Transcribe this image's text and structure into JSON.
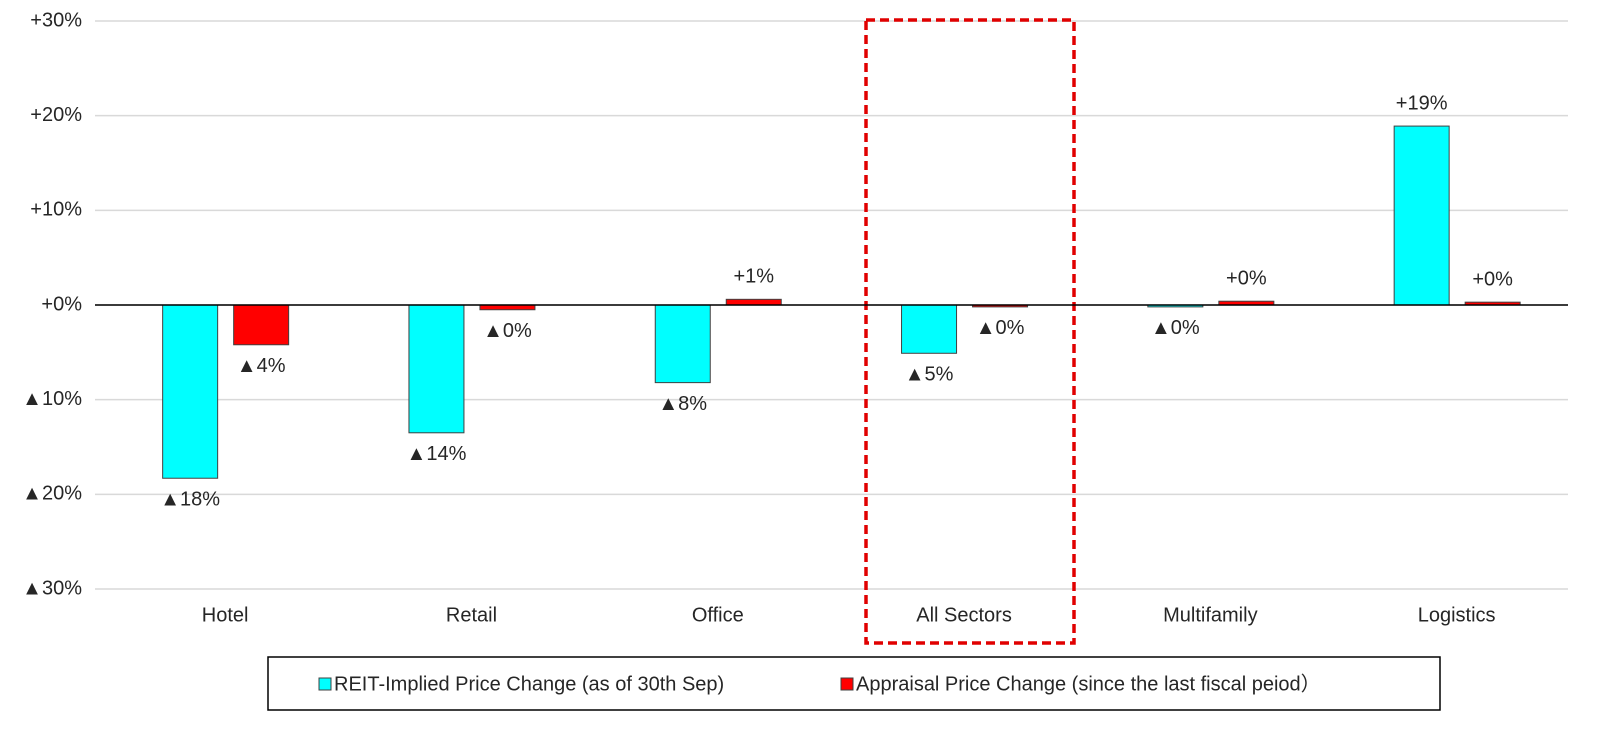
{
  "chart_data": {
    "type": "bar",
    "categories": [
      "Hotel",
      "Retail",
      "Office",
      "All Sectors",
      "Multifamily",
      "Logistics"
    ],
    "series": [
      {
        "name": "REIT-Implied Price Change (as of 30th Sep)",
        "color": "#00ffff",
        "values": [
          -18.3,
          -13.5,
          -8.2,
          -5.1,
          -0.2,
          18.9
        ],
        "value_labels": [
          "▲18%",
          "▲14%",
          "▲8%",
          "▲5%",
          "▲0%",
          "+19%"
        ]
      },
      {
        "name": "Appraisal Price Change (since the last fiscal peiod）",
        "color": "#ff0000",
        "values": [
          -4.2,
          -0.5,
          0.6,
          -0.2,
          0.4,
          0.3
        ],
        "value_labels": [
          "▲4%",
          "▲0%",
          "+1%",
          "▲0%",
          "+0%",
          "+0%"
        ]
      }
    ],
    "ylim": [
      -30,
      30
    ],
    "yticks": [
      {
        "value": -30,
        "label": "▲30%"
      },
      {
        "value": -20,
        "label": "▲20%"
      },
      {
        "value": -10,
        "label": "▲10%"
      },
      {
        "value": 0,
        "label": "+0%"
      },
      {
        "value": 10,
        "label": "+10%"
      },
      {
        "value": 20,
        "label": "+20%"
      },
      {
        "value": 30,
        "label": "+30%"
      }
    ],
    "grid": true
  }
}
